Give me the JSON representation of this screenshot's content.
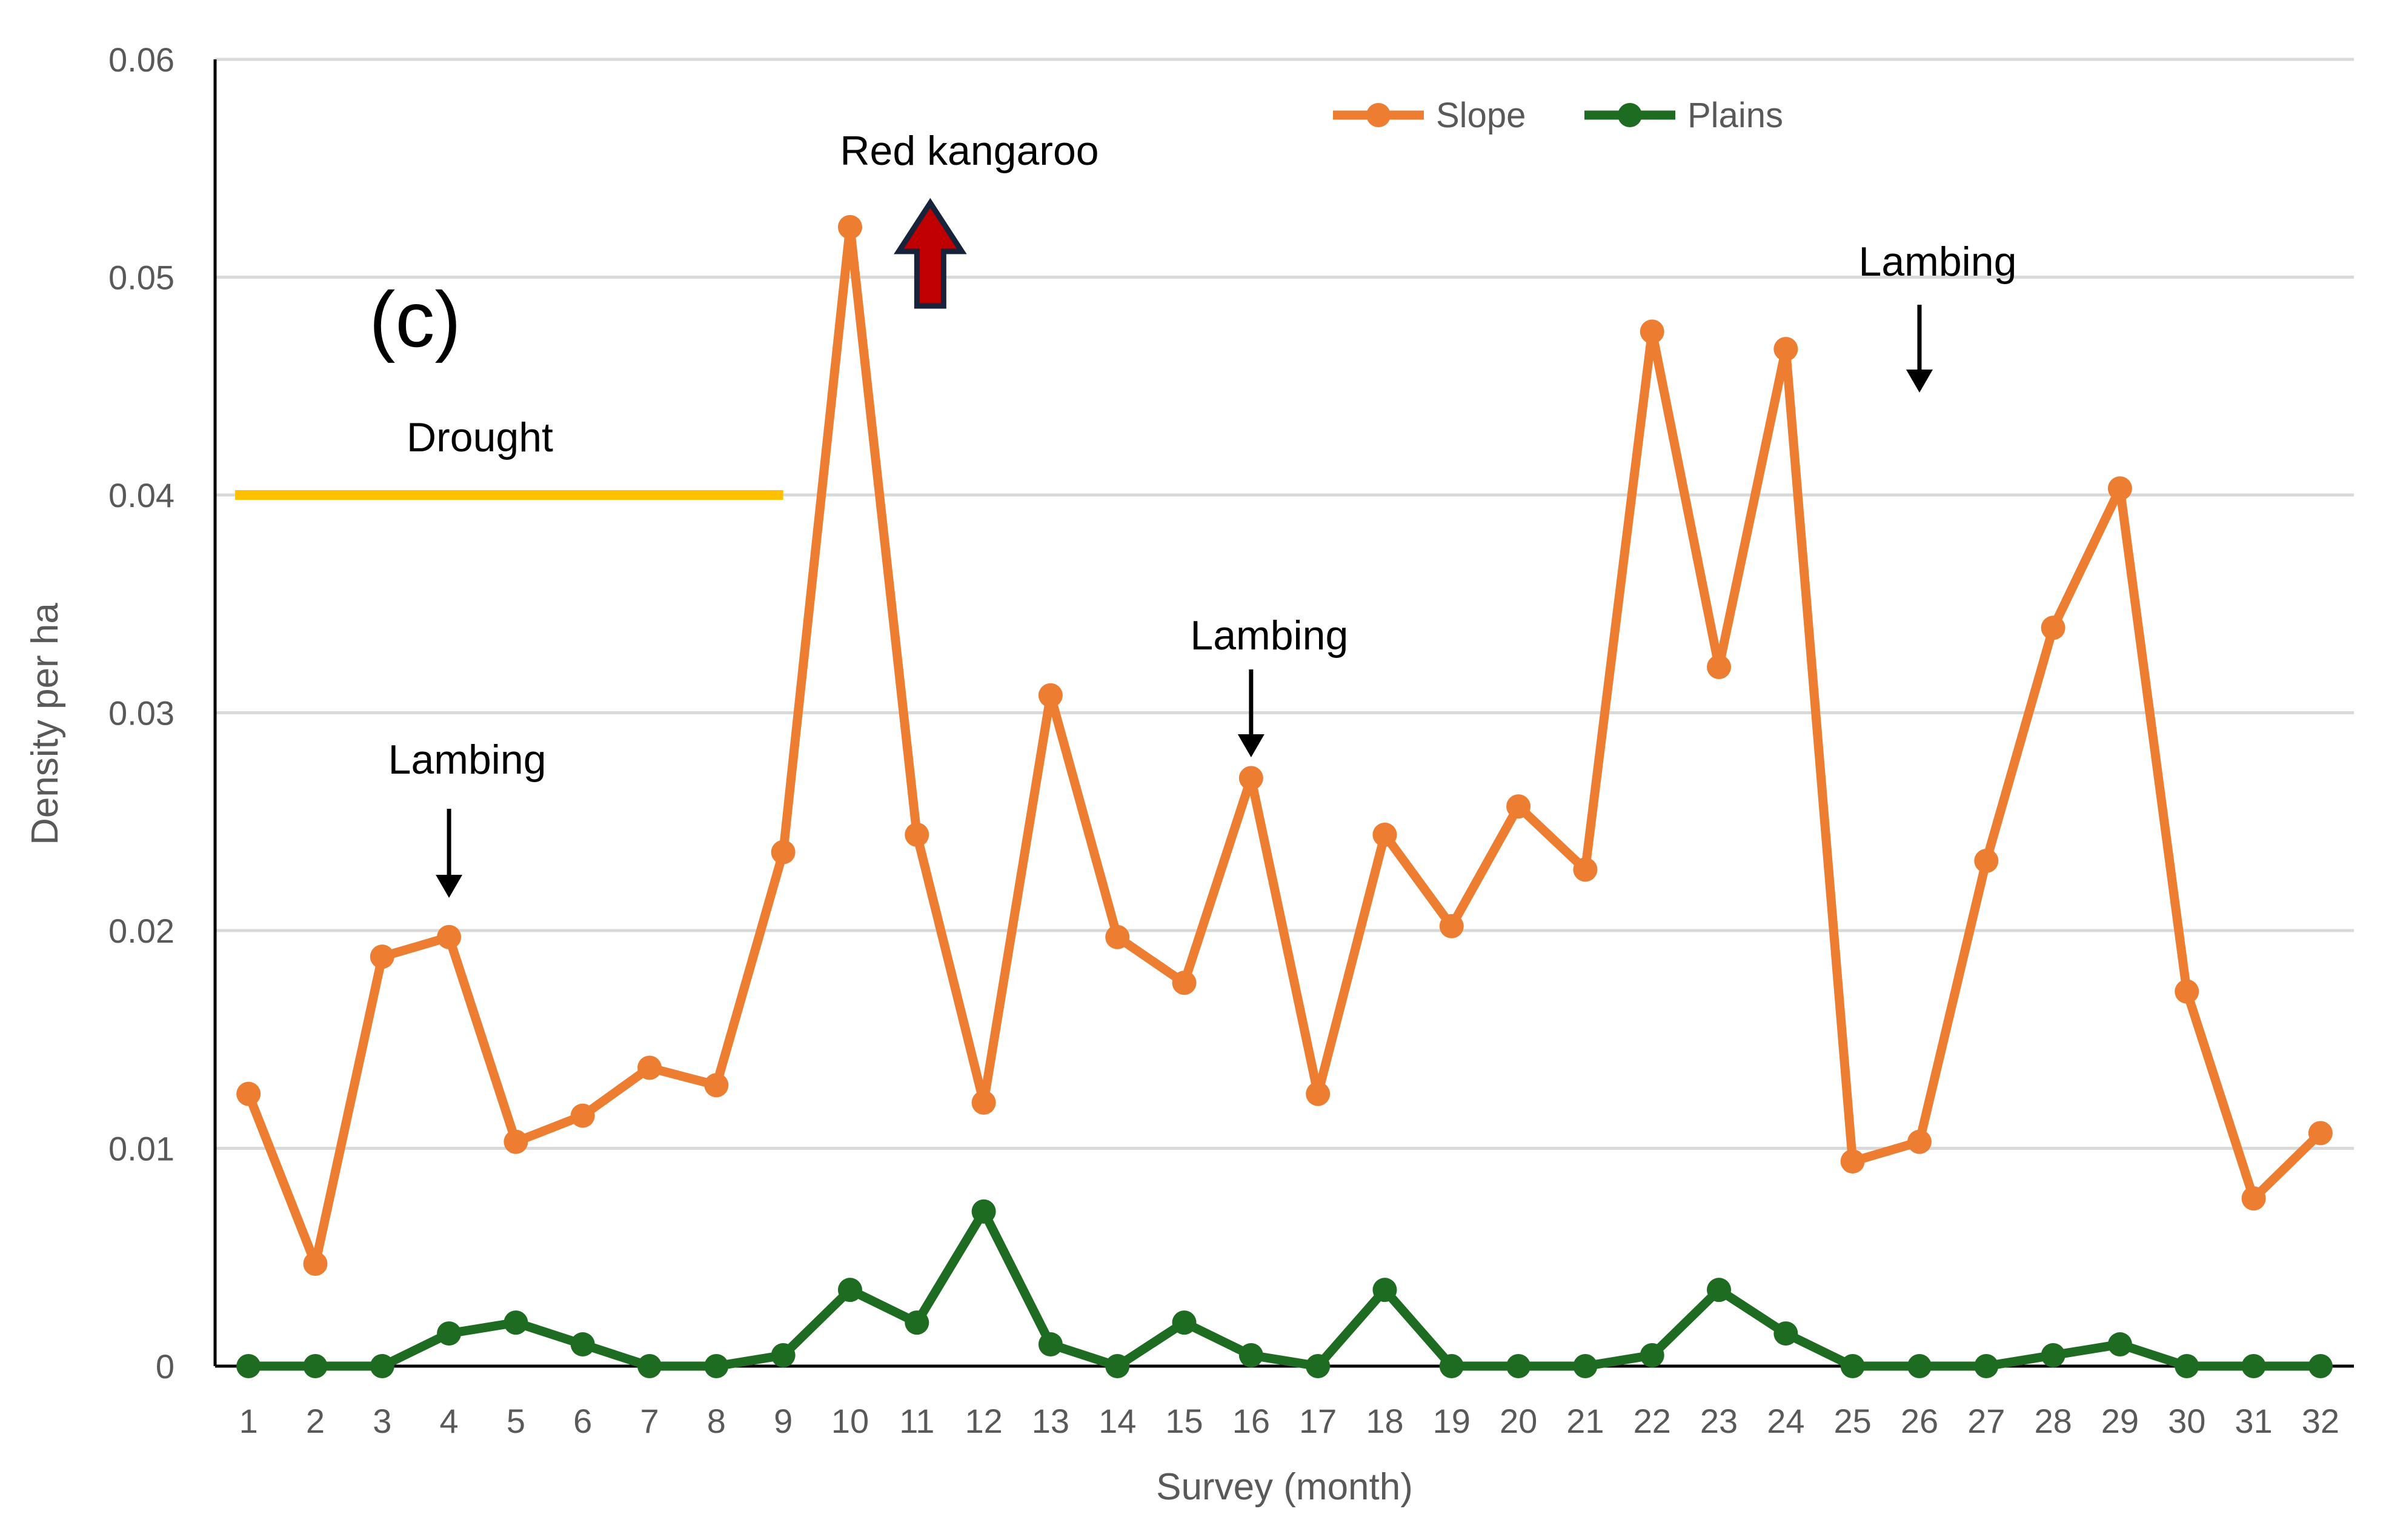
{
  "chart_data": {
    "type": "line",
    "title": "",
    "xlabel": "Survey (month)",
    "ylabel": "Density per ha",
    "ylim": [
      0,
      0.06
    ],
    "yticks": [
      "0",
      "0.01",
      "0.02",
      "0.03",
      "0.04",
      "0.05",
      "0.06"
    ],
    "ytick_values": [
      0,
      0.01,
      0.02,
      0.03,
      0.04,
      0.05,
      0.06
    ],
    "grid": "horizontal",
    "legend_position": "top-right",
    "categories": [
      "1",
      "2",
      "3",
      "4",
      "5",
      "6",
      "7",
      "8",
      "9",
      "10",
      "11",
      "12",
      "13",
      "14",
      "15",
      "16",
      "17",
      "18",
      "19",
      "20",
      "21",
      "22",
      "23",
      "24",
      "25",
      "26",
      "27",
      "28",
      "29",
      "30",
      "31",
      "32"
    ],
    "series": [
      {
        "name": "Slope",
        "color": "#ED7D31",
        "values": [
          0.0125,
          0.0047,
          0.0188,
          0.0197,
          0.0103,
          0.0115,
          0.0137,
          0.0129,
          0.0236,
          0.0523,
          0.0244,
          0.0121,
          0.0308,
          0.0197,
          0.0176,
          0.027,
          0.0125,
          0.0244,
          0.0202,
          0.0257,
          0.0228,
          0.0475,
          0.0321,
          0.0467,
          0.0094,
          0.0103,
          0.0232,
          0.0339,
          0.0403,
          0.0172,
          0.0077,
          0.0107
        ]
      },
      {
        "name": "Plains",
        "color": "#1E6B22",
        "values": [
          0,
          0,
          0,
          0.0015,
          0.002,
          0.001,
          0,
          0,
          0.0005,
          0.0035,
          0.002,
          0.0071,
          0.001,
          0,
          0.002,
          0.0005,
          0,
          0.0035,
          0,
          0,
          0,
          0.0005,
          0.0035,
          0.0015,
          0,
          0,
          0,
          0.0005,
          0.001,
          0,
          0,
          0
        ]
      }
    ],
    "annotations": {
      "panel_label": "(c)",
      "drought_label": "Drought",
      "drought_color": "#FFC000",
      "drought_from_survey": 0.8,
      "drought_to_survey": 9.0,
      "drought_level": 0.04,
      "red_kangaroo_label": "Red kangaroo",
      "red_kangaroo_survey": 11.2,
      "red_kangaroo_arrow_color": "#C00000",
      "lambing_label": "Lambing",
      "lambing_surveys": [
        4,
        16,
        26
      ]
    }
  }
}
